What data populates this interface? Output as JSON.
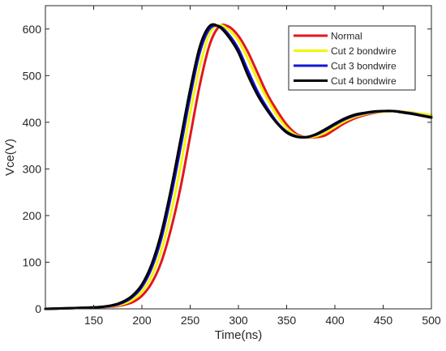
{
  "chart_data": {
    "type": "line",
    "xlabel": "Time(ns)",
    "ylabel": "Vce(V)",
    "xlim": [
      100,
      500
    ],
    "ylim": [
      0,
      650
    ],
    "xticks": [
      150,
      200,
      250,
      300,
      350,
      400,
      450,
      500
    ],
    "yticks": [
      0,
      100,
      200,
      300,
      400,
      500,
      600
    ],
    "grid": false,
    "legend_position": "top-right",
    "series": [
      {
        "name": "Normal",
        "color": "#e3161c",
        "x": [
          100,
          150,
          170,
          180,
          190,
          200,
          210,
          220,
          230,
          240,
          250,
          260,
          270,
          280,
          290,
          300,
          310,
          320,
          330,
          340,
          350,
          360,
          370,
          380,
          390,
          400,
          410,
          420,
          430,
          440,
          450,
          460,
          470,
          480,
          490,
          500
        ],
        "y": [
          0,
          3,
          5,
          8,
          14,
          28,
          55,
          100,
          170,
          260,
          370,
          480,
          565,
          605,
          605,
          585,
          550,
          505,
          460,
          425,
          395,
          375,
          368,
          368,
          372,
          385,
          398,
          408,
          415,
          420,
          423,
          424,
          423,
          420,
          418,
          415
        ]
      },
      {
        "name": "Cut 2 bondwire",
        "color": "#f5f500",
        "x": [
          100,
          150,
          170,
          180,
          190,
          200,
          210,
          220,
          230,
          240,
          250,
          260,
          270,
          280,
          290,
          300,
          310,
          320,
          330,
          340,
          350,
          360,
          370,
          380,
          390,
          400,
          410,
          420,
          430,
          440,
          450,
          460,
          470,
          480,
          490,
          500
        ],
        "y": [
          0,
          3,
          6,
          10,
          19,
          37,
          70,
          125,
          205,
          305,
          420,
          520,
          590,
          608,
          598,
          575,
          535,
          490,
          450,
          415,
          388,
          372,
          368,
          370,
          378,
          390,
          402,
          411,
          417,
          421,
          423,
          424,
          423,
          421,
          418,
          416
        ]
      },
      {
        "name": "Cut 3 bondwire",
        "color": "#1414d8",
        "x": [
          100,
          150,
          170,
          180,
          190,
          200,
          210,
          220,
          230,
          240,
          250,
          260,
          270,
          280,
          290,
          300,
          310,
          320,
          330,
          340,
          350,
          360,
          370,
          380,
          390,
          400,
          410,
          420,
          430,
          440,
          450,
          460,
          470,
          480,
          490,
          500
        ],
        "y": [
          0,
          3,
          7,
          13,
          25,
          47,
          87,
          150,
          240,
          345,
          455,
          550,
          600,
          606,
          588,
          557,
          510,
          465,
          430,
          400,
          380,
          370,
          368,
          373,
          383,
          395,
          406,
          414,
          419,
          422,
          424,
          424,
          422,
          419,
          415,
          411
        ]
      },
      {
        "name": "Cut 4 bondwire",
        "color": "#000000",
        "x": [
          100,
          150,
          170,
          180,
          190,
          200,
          210,
          220,
          230,
          240,
          250,
          260,
          270,
          280,
          290,
          300,
          310,
          320,
          330,
          340,
          350,
          360,
          370,
          380,
          390,
          400,
          410,
          420,
          430,
          440,
          450,
          460,
          470,
          480,
          490,
          500
        ],
        "y": [
          0,
          3,
          8,
          15,
          28,
          52,
          95,
          162,
          255,
          362,
          470,
          562,
          606,
          605,
          583,
          550,
          500,
          458,
          425,
          398,
          378,
          369,
          368,
          374,
          385,
          397,
          408,
          416,
          420,
          423,
          424,
          424,
          421,
          418,
          414,
          410
        ]
      }
    ]
  }
}
